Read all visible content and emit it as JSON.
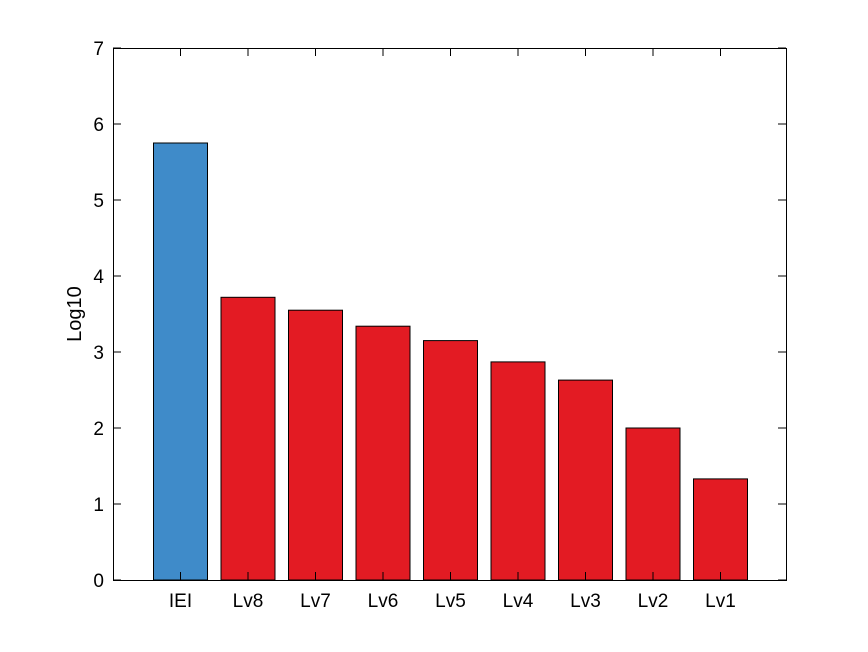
{
  "chart_data": {
    "type": "bar",
    "title": "",
    "xlabel": "",
    "ylabel": "Log10",
    "ylim": [
      0,
      7
    ],
    "yticks": [
      0,
      1,
      2,
      3,
      4,
      5,
      6,
      7
    ],
    "grid": false,
    "categories": [
      "IEI",
      "Lv8",
      "Lv7",
      "Lv6",
      "Lv5",
      "Lv4",
      "Lv3",
      "Lv2",
      "Lv1"
    ],
    "values": [
      5.75,
      3.72,
      3.55,
      3.34,
      3.15,
      2.87,
      2.63,
      2.0,
      1.33
    ],
    "colors": [
      "#3f8bc9",
      "#e31b23",
      "#e31b23",
      "#e31b23",
      "#e31b23",
      "#e31b23",
      "#e31b23",
      "#e31b23",
      "#e31b23"
    ]
  }
}
